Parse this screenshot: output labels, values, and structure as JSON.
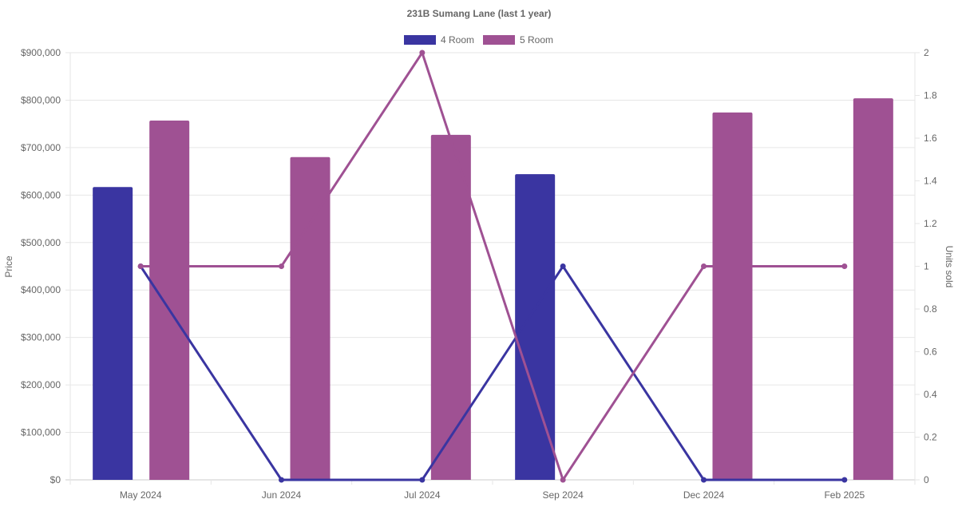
{
  "chart_data": {
    "type": "bar",
    "title": "231B Sumang Lane (last 1 year)",
    "categories": [
      "May 2024",
      "Jun 2024",
      "Jul 2024",
      "Sep 2024",
      "Dec 2024",
      "Feb 2025"
    ],
    "ylabel": "Price",
    "y2label": "Units sold",
    "ylim": [
      0,
      900000
    ],
    "y2lim": [
      0,
      2
    ],
    "yticks": [
      "$0",
      "$100,000",
      "$200,000",
      "$300,000",
      "$400,000",
      "$500,000",
      "$600,000",
      "$700,000",
      "$800,000",
      "$900,000"
    ],
    "y2ticks": [
      "0",
      "0.2",
      "0.4",
      "0.6",
      "0.8",
      "1",
      "1.2",
      "1.4",
      "1.6",
      "1.8",
      "2"
    ],
    "legend_position": "top",
    "grid": true,
    "series": [
      {
        "name": "4 Room",
        "color": "#3a35a1",
        "price": [
          617000,
          null,
          null,
          644000,
          null,
          null
        ],
        "units": [
          1,
          0,
          0,
          1,
          0,
          0
        ]
      },
      {
        "name": "5 Room",
        "color": "#9f5193",
        "price": [
          757000,
          680000,
          727000,
          null,
          774000,
          804000
        ],
        "units": [
          1,
          1,
          2,
          0,
          1,
          1
        ]
      }
    ]
  }
}
